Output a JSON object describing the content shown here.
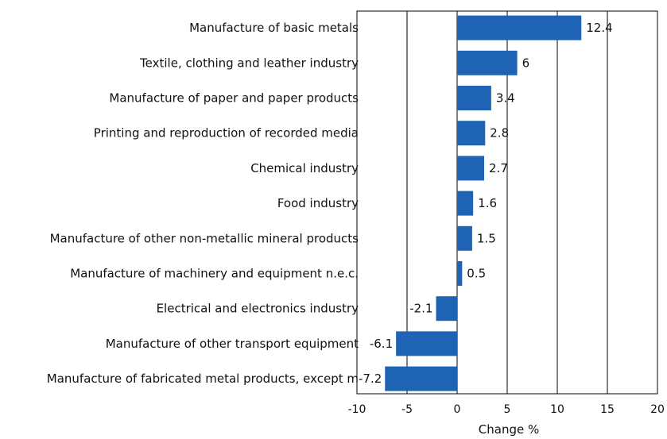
{
  "chart_data": {
    "type": "bar",
    "orientation": "horizontal",
    "title": "",
    "xlabel": "Change %",
    "ylabel": "",
    "xlim": [
      -10,
      20
    ],
    "xticks": [
      -10,
      -5,
      0,
      5,
      10,
      15,
      20
    ],
    "tick_labels": [
      "-10",
      "-5",
      "0",
      "5",
      "10",
      "15",
      "20"
    ],
    "grid": "vertical lines at major ticks",
    "legend": "none",
    "bar_color": "#1f63b5",
    "categories": [
      "Manufacture of basic metals",
      "Textile, clothing and leather industry",
      "Manufacture of paper and paper products",
      "Printing and reproduction of recorded media",
      "Chemical industry",
      "Food industry",
      "Manufacture of other non-metallic mineral products",
      "Manufacture of machinery and equipment n.e.c.",
      "Electrical and electronics industry",
      "Manufacture of other transport equipment",
      "Manufacture of fabricated metal products, except m"
    ],
    "values": [
      12.4,
      6,
      3.4,
      2.8,
      2.7,
      1.6,
      1.5,
      0.5,
      -2.1,
      -6.1,
      -7.2
    ],
    "value_labels": [
      "12.4",
      "6",
      "3.4",
      "2.8",
      "2.7",
      "1.6",
      "1.5",
      "0.5",
      "-2.1",
      "-6.1",
      "-7.2"
    ]
  }
}
